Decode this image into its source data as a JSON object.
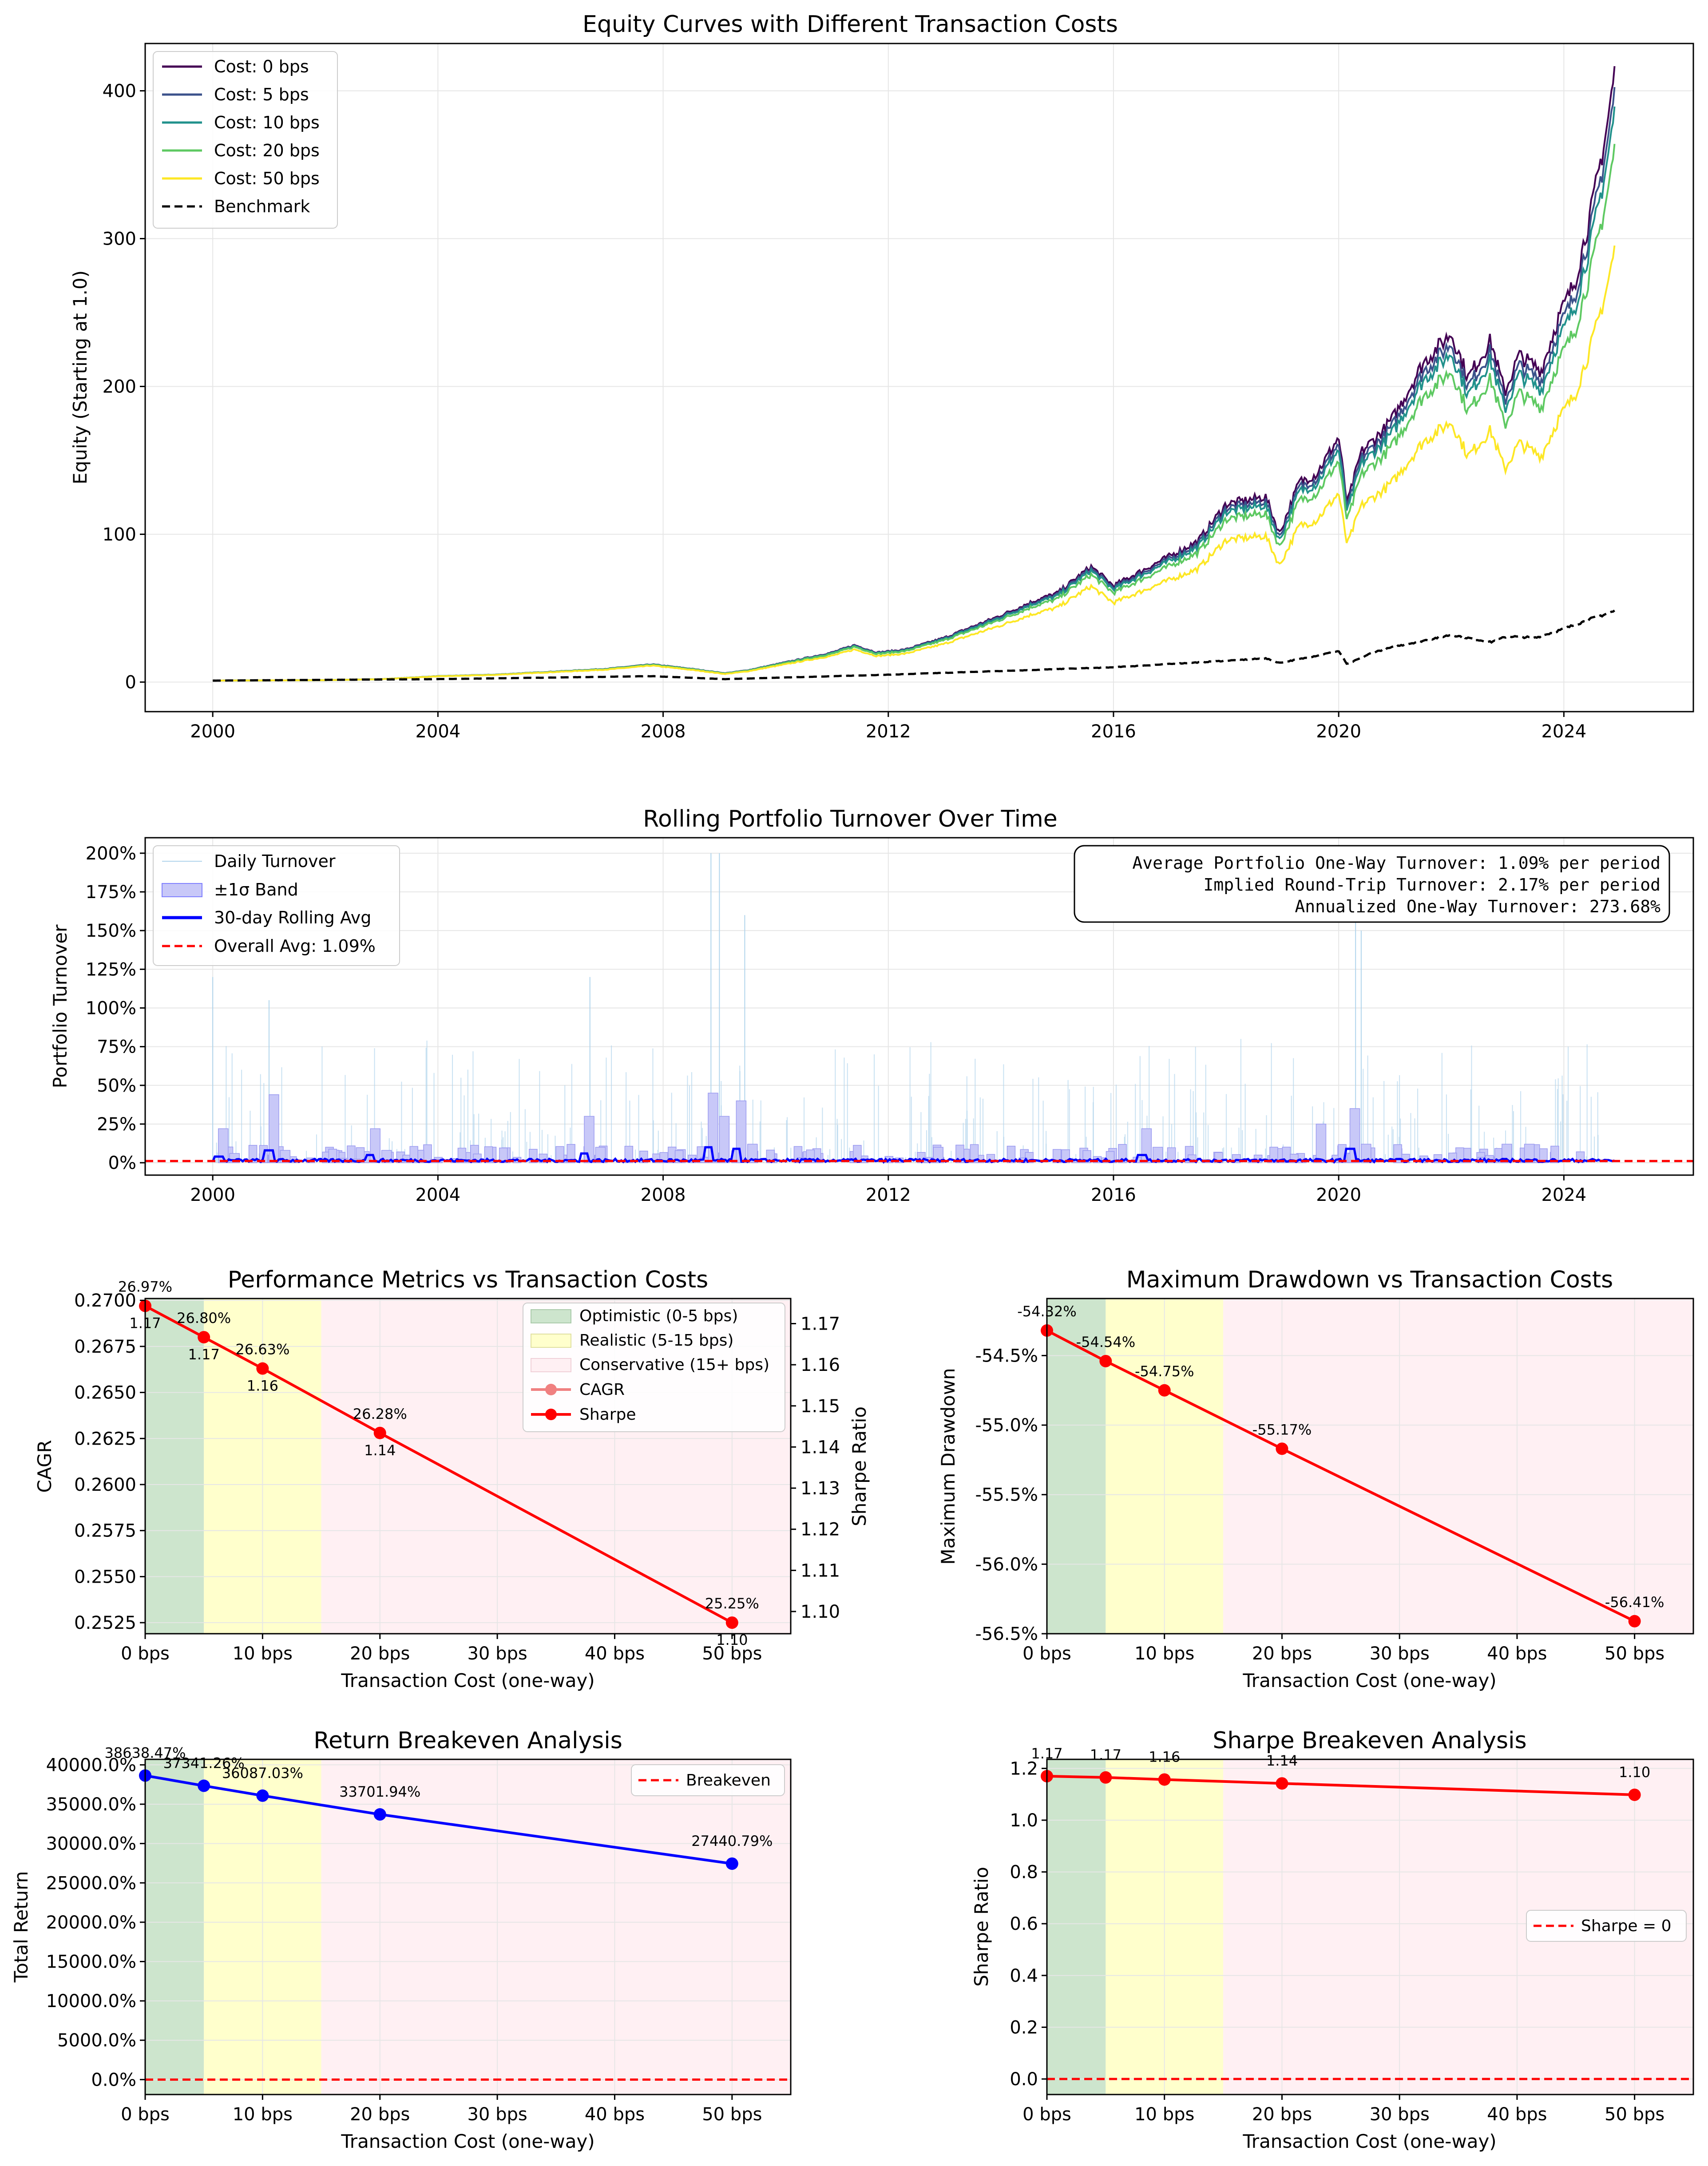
{
  "chart_data": [
    {
      "id": "equity",
      "type": "line",
      "title": "Equity Curves with Different Transaction Costs",
      "xlabel": "",
      "ylabel": "Equity (Starting at 1.0)",
      "xlim": [
        1998.8,
        2026.3
      ],
      "ylim": [
        -20,
        432
      ],
      "xticks": [
        2000,
        2004,
        2008,
        2012,
        2016,
        2020,
        2024
      ],
      "xtick_labels": [
        "2000",
        "2004",
        "2008",
        "2012",
        "2016",
        "2020",
        "2024"
      ],
      "yticks": [
        0,
        100,
        200,
        300,
        400
      ],
      "ytick_labels": [
        "0",
        "100",
        "200",
        "300",
        "400"
      ],
      "grid": true,
      "legend": "top-left",
      "series": [
        {
          "name": "Cost: 0 bps",
          "color": "#440154",
          "style": "solid",
          "final": 412
        },
        {
          "name": "Cost: 5 bps",
          "color": "#3b528b",
          "style": "solid",
          "final": 398
        },
        {
          "name": "Cost: 10 bps",
          "color": "#21918c",
          "style": "solid",
          "final": 385
        },
        {
          "name": "Cost: 20 bps",
          "color": "#5ec962",
          "style": "solid",
          "final": 360
        },
        {
          "name": "Cost: 50 bps",
          "color": "#fde725",
          "style": "solid",
          "final": 292
        },
        {
          "name": "Benchmark",
          "color": "#000000",
          "style": "dashed",
          "final": 48
        }
      ],
      "base_path": {
        "x": [
          2000,
          2002,
          2003,
          2004,
          2005,
          2006,
          2007,
          2007.8,
          2008.5,
          2009.1,
          2009.5,
          2010,
          2011,
          2011.4,
          2011.8,
          2012.3,
          2013,
          2014,
          2014.6,
          2015,
          2015.6,
          2016,
          2016.5,
          2017,
          2017.5,
          2018,
          2018.7,
          2018.95,
          2019.3,
          2019.6,
          2020,
          2020.15,
          2020.4,
          2020.8,
          2021,
          2021.5,
          2022,
          2022.3,
          2022.7,
          2022.95,
          2023.2,
          2023.6,
          2023.9,
          2024.2,
          2024.5,
          2024.75,
          2024.9
        ],
        "y": [
          1,
          1.3,
          2,
          4,
          5,
          7,
          9,
          12,
          9,
          6,
          8,
          12,
          20,
          25,
          20,
          22,
          30,
          45,
          55,
          60,
          78,
          65,
          75,
          85,
          95,
          120,
          125,
          100,
          135,
          140,
          165,
          120,
          155,
          170,
          180,
          215,
          235,
          205,
          230,
          195,
          220,
          210,
          245,
          270,
          320,
          370,
          410
        ]
      },
      "benchmark_path": {
        "x": [
          2000,
          2004,
          2007.8,
          2009.1,
          2012,
          2016,
          2018.7,
          2018.95,
          2019.5,
          2020,
          2020.15,
          2020.6,
          2021,
          2022,
          2022.7,
          2023,
          2023.5,
          2024,
          2024.5,
          2024.9
        ],
        "y": [
          1,
          2,
          4,
          2,
          5,
          10,
          16,
          13,
          17,
          21,
          12,
          20,
          24,
          32,
          27,
          31,
          30,
          36,
          43,
          48
        ]
      }
    },
    {
      "id": "turnover",
      "type": "line",
      "title": "Rolling Portfolio Turnover Over Time",
      "xlabel": "",
      "ylabel": "Portfolio Turnover",
      "xlim": [
        1998.8,
        2026.3
      ],
      "ylim": [
        -0.08,
        2.1
      ],
      "xticks": [
        2000,
        2004,
        2008,
        2012,
        2016,
        2020,
        2024
      ],
      "xtick_labels": [
        "2000",
        "2004",
        "2008",
        "2012",
        "2016",
        "2020",
        "2024"
      ],
      "yticks": [
        0,
        0.25,
        0.5,
        0.75,
        1.0,
        1.25,
        1.5,
        1.75,
        2.0
      ],
      "ytick_labels": [
        "0%",
        "25%",
        "50%",
        "75%",
        "100%",
        "125%",
        "150%",
        "175%",
        "200%"
      ],
      "grid": true,
      "legend": "top-left",
      "legend_entries": [
        "Daily Turnover",
        "±1σ Band",
        "30-day Rolling Avg",
        "Overall Avg: 1.09%"
      ],
      "overall_avg": 0.0109,
      "band_x": [
        2000.1,
        2000.3,
        2001.0,
        2001.2,
        2002.8,
        2003.0,
        2006.6,
        2006.8,
        2008.8,
        2009.0,
        2009.3,
        2009.5,
        2012.8,
        2016.5,
        2016.7,
        2019.6,
        2020.2,
        2020.4,
        2022.9,
        2023.3
      ],
      "band_y": [
        0.22,
        0.06,
        0.44,
        0.08,
        0.22,
        0.08,
        0.3,
        0.1,
        0.45,
        0.3,
        0.4,
        0.12,
        0.1,
        0.22,
        0.1,
        0.25,
        0.35,
        0.12,
        0.12,
        0.12
      ],
      "rolling_x": [
        2000.1,
        2001.0,
        2002.8,
        2006.6,
        2008.8,
        2009.3,
        2016.5,
        2020.2
      ],
      "rolling_y": [
        0.04,
        0.08,
        0.05,
        0.06,
        0.1,
        0.09,
        0.05,
        0.09
      ],
      "spike_x": [
        2000.0,
        2001.0,
        2006.7,
        2008.85,
        2009.0,
        2009.45,
        2020.3,
        2020.4
      ],
      "spike_y": [
        1.2,
        1.05,
        1.2,
        2.0,
        2.0,
        1.6,
        1.95,
        1.5
      ],
      "annotation_lines": [
        "Average Portfolio One-Way Turnover: 1.09% per period",
        "Implied Round-Trip Turnover: 2.17% per period",
        "Annualized One-Way Turnover: 273.68%"
      ]
    },
    {
      "id": "perf",
      "type": "line",
      "title": "Performance Metrics vs Transaction Costs",
      "xlabel": "Transaction Cost (one-way)",
      "ylabel": "CAGR",
      "ylabel_right": "Sharpe Ratio",
      "xlim": [
        0,
        55
      ],
      "ylim": [
        0.2519,
        0.2701
      ],
      "ylim_right": [
        1.0946,
        1.1761
      ],
      "xticks": [
        0,
        10,
        20,
        30,
        40,
        50
      ],
      "xtick_labels": [
        "0 bps",
        "10 bps",
        "20 bps",
        "30 bps",
        "40 bps",
        "50 bps"
      ],
      "yticks": [
        0.2525,
        0.255,
        0.2575,
        0.26,
        0.2625,
        0.265,
        0.2675,
        0.27
      ],
      "ytick_labels": [
        "0.2525",
        "0.2550",
        "0.2575",
        "0.2600",
        "0.2625",
        "0.2650",
        "0.2675",
        "0.2700"
      ],
      "yticks_right": [
        1.1,
        1.11,
        1.12,
        1.13,
        1.14,
        1.15,
        1.16,
        1.17
      ],
      "ytick_labels_right": [
        "1.10",
        "1.11",
        "1.12",
        "1.13",
        "1.14",
        "1.15",
        "1.16",
        "1.17"
      ],
      "grid": true,
      "legend": "top-right",
      "costs": [
        0,
        5,
        10,
        20,
        50
      ],
      "cagr": [
        0.2697,
        0.268,
        0.2663,
        0.2628,
        0.2525
      ],
      "cagr_labels": [
        "26.97%",
        "26.80%",
        "26.63%",
        "26.28%",
        "25.25%"
      ],
      "sharpe_labels": [
        "1.17",
        "1.17",
        "1.16",
        "1.14",
        "1.10"
      ],
      "legend_entries": [
        "Optimistic (0-5 bps)",
        "Realistic (5-15 bps)",
        "Conservative (15+ bps)",
        "CAGR",
        "Sharpe"
      ]
    },
    {
      "id": "mdd",
      "type": "line",
      "title": "Maximum Drawdown vs Transaction Costs",
      "xlabel": "Transaction Cost (one-way)",
      "ylabel": "Maximum Drawdown",
      "xlim": [
        0,
        55
      ],
      "ylim": [
        -0.565,
        -0.5409
      ],
      "xticks": [
        0,
        10,
        20,
        30,
        40,
        50
      ],
      "xtick_labels": [
        "0 bps",
        "10 bps",
        "20 bps",
        "30 bps",
        "40 bps",
        "50 bps"
      ],
      "yticks": [
        -0.545,
        -0.55,
        -0.555,
        -0.56,
        -0.565
      ],
      "ytick_labels": [
        "-54.5%",
        "-55.0%",
        "-55.5%",
        "-56.0%",
        "-56.5%"
      ],
      "grid": true,
      "costs": [
        0,
        5,
        10,
        20,
        50
      ],
      "values": [
        -0.5432,
        -0.5454,
        -0.5475,
        -0.5517,
        -0.5641
      ],
      "value_labels": [
        "-54.32%",
        "-54.54%",
        "-54.75%",
        "-55.17%",
        "-56.41%"
      ]
    },
    {
      "id": "ret_be",
      "type": "line",
      "title": "Return Breakeven Analysis",
      "xlabel": "Transaction Cost (one-way)",
      "ylabel": "Total Return",
      "xlim": [
        0,
        55
      ],
      "ylim": [
        -1900,
        40700
      ],
      "xticks": [
        0,
        10,
        20,
        30,
        40,
        50
      ],
      "xtick_labels": [
        "0 bps",
        "10 bps",
        "20 bps",
        "30 bps",
        "40 bps",
        "50 bps"
      ],
      "yticks": [
        0,
        5000,
        10000,
        15000,
        20000,
        25000,
        30000,
        35000,
        40000
      ],
      "ytick_labels": [
        "0.0%",
        "5000.0%",
        "10000.0%",
        "15000.0%",
        "20000.0%",
        "25000.0%",
        "30000.0%",
        "35000.0%",
        "40000.0%"
      ],
      "grid": true,
      "legend": "top-right",
      "costs": [
        0,
        5,
        10,
        20,
        50
      ],
      "values": [
        38638.47,
        37341.26,
        36087.03,
        33701.94,
        27440.79
      ],
      "value_labels": [
        "38638.47%",
        "37341.26%",
        "36087.03%",
        "33701.94%",
        "27440.79%"
      ],
      "breakeven": 0,
      "legend_entries": [
        "Breakeven"
      ]
    },
    {
      "id": "sharpe_be",
      "type": "line",
      "title": "Sharpe Breakeven Analysis",
      "xlabel": "Transaction Cost (one-way)",
      "ylabel": "Sharpe Ratio",
      "xlim": [
        0,
        55
      ],
      "ylim": [
        -0.06,
        1.235
      ],
      "xticks": [
        0,
        10,
        20,
        30,
        40,
        50
      ],
      "xtick_labels": [
        "0 bps",
        "10 bps",
        "20 bps",
        "30 bps",
        "40 bps",
        "50 bps"
      ],
      "yticks": [
        0,
        0.2,
        0.4,
        0.6,
        0.8,
        1.0,
        1.2
      ],
      "ytick_labels": [
        "0.0",
        "0.2",
        "0.4",
        "0.6",
        "0.8",
        "1.0",
        "1.2"
      ],
      "grid": true,
      "legend": "right",
      "costs": [
        0,
        5,
        10,
        20,
        50
      ],
      "values": [
        1.17,
        1.165,
        1.157,
        1.142,
        1.098
      ],
      "value_labels": [
        "1.17",
        "1.17",
        "1.16",
        "1.14",
        "1.10"
      ],
      "zero_line": 0,
      "legend_entries": [
        "Sharpe = 0"
      ]
    }
  ],
  "colors": {
    "optimistic": "#cde5cd",
    "realistic": "#ffffcc",
    "conservative": "#fff0f3",
    "red": "#ff0000",
    "blue": "#0000ff",
    "cagr_marker": "#f08080",
    "grid": "#e6e6e6",
    "band": "#c8c8f8"
  }
}
